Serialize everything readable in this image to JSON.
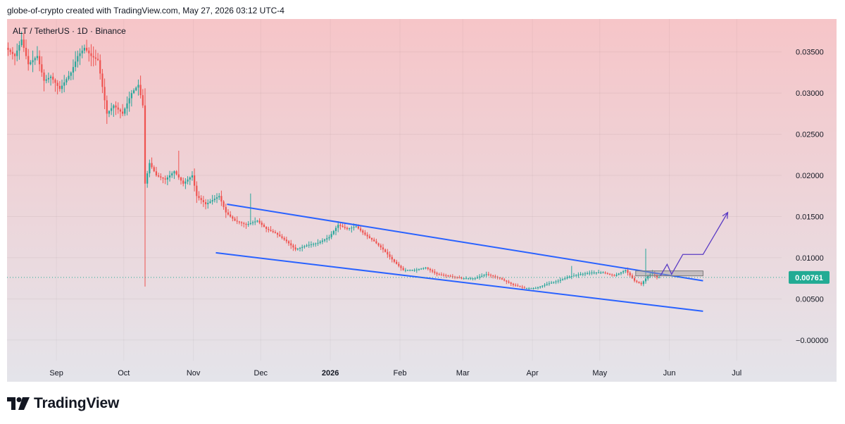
{
  "header": {
    "caption": "globe-of-crypto created with TradingView.com, May 27, 2026 03:12 UTC-4"
  },
  "symbol": {
    "label": "ALT / TetherUS · 1D · Binance"
  },
  "footer": {
    "brand": "TradingView"
  },
  "colors": {
    "up": "#26a69a",
    "down": "#ef5350",
    "channel": "#2962ff",
    "projection": "#5b3cc4",
    "price_tag": "#22ab94",
    "bg_top": "#f6c5c8",
    "bg_bottom": "#e4e4ea"
  },
  "chart_data": {
    "type": "candlestick",
    "symbol": "ALT / TetherUS",
    "interval": "1D",
    "exchange": "Binance",
    "y_axis": {
      "ticks": [
        {
          "value": 0.035,
          "label": "0.03500"
        },
        {
          "value": 0.03,
          "label": "0.03000"
        },
        {
          "value": 0.025,
          "label": "0.02500"
        },
        {
          "value": 0.02,
          "label": "0.02000"
        },
        {
          "value": 0.015,
          "label": "0.01500"
        },
        {
          "value": 0.01,
          "label": "0.01000"
        },
        {
          "value": 0.005,
          "label": "0.00500"
        },
        {
          "value": 0.0,
          "label": "−0.00000"
        }
      ],
      "range": [
        -0.0025,
        0.039
      ]
    },
    "x_axis": {
      "ticks": [
        {
          "date": "2025-09-01",
          "label": "Sep",
          "bold": false
        },
        {
          "date": "2025-10-01",
          "label": "Oct",
          "bold": false
        },
        {
          "date": "2025-11-01",
          "label": "Nov",
          "bold": false
        },
        {
          "date": "2025-12-01",
          "label": "Dec",
          "bold": false
        },
        {
          "date": "2026-01-01",
          "label": "2026",
          "bold": true
        },
        {
          "date": "2026-02-01",
          "label": "Feb",
          "bold": false
        },
        {
          "date": "2026-03-01",
          "label": "Mar",
          "bold": false
        },
        {
          "date": "2026-04-01",
          "label": "Apr",
          "bold": false
        },
        {
          "date": "2026-05-01",
          "label": "May",
          "bold": false
        },
        {
          "date": "2026-06-01",
          "label": "Jun",
          "bold": false
        },
        {
          "date": "2026-07-01",
          "label": "Jul",
          "bold": false
        }
      ],
      "range": [
        "2025-08-10",
        "2026-07-21"
      ]
    },
    "last_price": {
      "value": 0.00761,
      "label": "0.00761"
    },
    "price_path": [
      [
        "2025-08-10",
        0.0355
      ],
      [
        "2025-08-14",
        0.0345
      ],
      [
        "2025-08-17",
        0.0365
      ],
      [
        "2025-08-20",
        0.0335
      ],
      [
        "2025-08-24",
        0.0345
      ],
      [
        "2025-08-27",
        0.0315
      ],
      [
        "2025-08-30",
        0.032
      ],
      [
        "2025-09-03",
        0.0305
      ],
      [
        "2025-09-08",
        0.0325
      ],
      [
        "2025-09-11",
        0.0345
      ],
      [
        "2025-09-14",
        0.0355
      ],
      [
        "2025-09-17",
        0.0345
      ],
      [
        "2025-09-20",
        0.034
      ],
      [
        "2025-09-24",
        0.0275
      ],
      [
        "2025-09-27",
        0.0285
      ],
      [
        "2025-10-01",
        0.0275
      ],
      [
        "2025-10-05",
        0.03
      ],
      [
        "2025-10-08",
        0.031
      ],
      [
        "2025-10-10",
        0.0285
      ],
      [
        "2025-10-11",
        0.019
      ],
      [
        "2025-10-13",
        0.0215
      ],
      [
        "2025-10-16",
        0.02
      ],
      [
        "2025-10-20",
        0.0195
      ],
      [
        "2025-10-24",
        0.0205
      ],
      [
        "2025-10-28",
        0.019
      ],
      [
        "2025-11-01",
        0.02
      ],
      [
        "2025-11-03",
        0.0175
      ],
      [
        "2025-11-07",
        0.0165
      ],
      [
        "2025-11-10",
        0.017
      ],
      [
        "2025-11-13",
        0.0175
      ],
      [
        "2025-11-16",
        0.0155
      ],
      [
        "2025-11-20",
        0.0145
      ],
      [
        "2025-11-25",
        0.014
      ],
      [
        "2025-11-30",
        0.0145
      ],
      [
        "2025-12-04",
        0.0135
      ],
      [
        "2025-12-08",
        0.013
      ],
      [
        "2025-12-13",
        0.012
      ],
      [
        "2025-12-17",
        0.011
      ],
      [
        "2025-12-22",
        0.0115
      ],
      [
        "2025-12-27",
        0.0118
      ],
      [
        "2026-01-01",
        0.0125
      ],
      [
        "2026-01-05",
        0.014
      ],
      [
        "2026-01-09",
        0.0135
      ],
      [
        "2026-01-13",
        0.0138
      ],
      [
        "2026-01-17",
        0.0128
      ],
      [
        "2026-01-21",
        0.012
      ],
      [
        "2026-01-25",
        0.011
      ],
      [
        "2026-01-30",
        0.0095
      ],
      [
        "2026-02-03",
        0.0085
      ],
      [
        "2026-02-08",
        0.0085
      ],
      [
        "2026-02-13",
        0.0088
      ],
      [
        "2026-02-18",
        0.008
      ],
      [
        "2026-02-23",
        0.0078
      ],
      [
        "2026-03-01",
        0.0075
      ],
      [
        "2026-03-07",
        0.0075
      ],
      [
        "2026-03-12",
        0.008
      ],
      [
        "2026-03-18",
        0.0075
      ],
      [
        "2026-03-24",
        0.0067
      ],
      [
        "2026-03-29",
        0.0063
      ],
      [
        "2026-04-03",
        0.0063
      ],
      [
        "2026-04-08",
        0.0068
      ],
      [
        "2026-04-13",
        0.0072
      ],
      [
        "2026-04-18",
        0.0077
      ],
      [
        "2026-04-23",
        0.008
      ],
      [
        "2026-04-28",
        0.0082
      ],
      [
        "2026-05-03",
        0.0082
      ],
      [
        "2026-05-08",
        0.0078
      ],
      [
        "2026-05-13",
        0.0085
      ],
      [
        "2026-05-17",
        0.0072
      ],
      [
        "2026-05-20",
        0.0068
      ],
      [
        "2026-05-23",
        0.0078
      ],
      [
        "2026-05-25",
        0.0082
      ],
      [
        "2026-05-27",
        0.00761
      ]
    ],
    "annotations": [
      {
        "type": "trend_line",
        "name": "channel-upper",
        "points": [
          [
            "2025-11-16",
            0.0165
          ],
          [
            "2026-06-16",
            0.0072
          ]
        ]
      },
      {
        "type": "trend_line",
        "name": "channel-lower",
        "points": [
          [
            "2025-11-11",
            0.0106
          ],
          [
            "2026-06-16",
            0.0035
          ]
        ]
      },
      {
        "type": "zone",
        "name": "resistance-zone",
        "from": "2026-05-17",
        "to": "2026-06-16",
        "price_low": 0.0078,
        "price_high": 0.0084
      },
      {
        "type": "projection_path",
        "name": "projected-path",
        "points": [
          [
            "2026-05-28",
            0.0078
          ],
          [
            "2026-05-31",
            0.0092
          ],
          [
            "2026-06-02",
            0.008
          ],
          [
            "2026-06-07",
            0.0104
          ],
          [
            "2026-06-16",
            0.0104
          ],
          [
            "2026-06-27",
            0.0155
          ]
        ]
      }
    ]
  }
}
